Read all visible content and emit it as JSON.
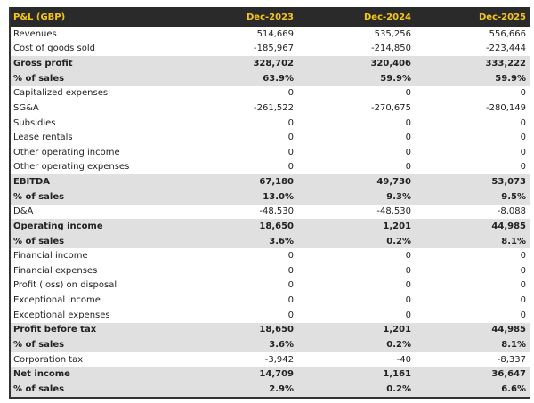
{
  "header": {
    "title": "P&L (GBP)",
    "columns": [
      "Dec-2023",
      "Dec-2024",
      "Dec-2025"
    ]
  },
  "colors": {
    "header_bg": "#2a2a2a",
    "header_text": "#f5c518",
    "highlight_bg": "#e0e0e0"
  },
  "rows": [
    {
      "label": "Revenues",
      "values": [
        "514,669",
        "535,256",
        "556,666"
      ],
      "highlight": false
    },
    {
      "label": "Cost of goods sold",
      "values": [
        "-185,967",
        "-214,850",
        "-223,444"
      ],
      "highlight": false
    },
    {
      "label": "Gross profit",
      "values": [
        "328,702",
        "320,406",
        "333,222"
      ],
      "highlight": true
    },
    {
      "label": "% of sales",
      "values": [
        "63.9%",
        "59.9%",
        "59.9%"
      ],
      "highlight": true
    },
    {
      "label": "Capitalized expenses",
      "values": [
        "0",
        "0",
        "0"
      ],
      "highlight": false
    },
    {
      "label": "SG&A",
      "values": [
        "-261,522",
        "-270,675",
        "-280,149"
      ],
      "highlight": false
    },
    {
      "label": "Subsidies",
      "values": [
        "0",
        "0",
        "0"
      ],
      "highlight": false
    },
    {
      "label": "Lease rentals",
      "values": [
        "0",
        "0",
        "0"
      ],
      "highlight": false
    },
    {
      "label": "Other operating income",
      "values": [
        "0",
        "0",
        "0"
      ],
      "highlight": false
    },
    {
      "label": "Other operating expenses",
      "values": [
        "0",
        "0",
        "0"
      ],
      "highlight": false
    },
    {
      "label": "EBITDA",
      "values": [
        "67,180",
        "49,730",
        "53,073"
      ],
      "highlight": true
    },
    {
      "label": "% of sales",
      "values": [
        "13.0%",
        "9.3%",
        "9.5%"
      ],
      "highlight": true
    },
    {
      "label": "D&A",
      "values": [
        "-48,530",
        "-48,530",
        "-8,088"
      ],
      "highlight": false
    },
    {
      "label": "Operating income",
      "values": [
        "18,650",
        "1,201",
        "44,985"
      ],
      "highlight": true
    },
    {
      "label": "% of sales",
      "values": [
        "3.6%",
        "0.2%",
        "8.1%"
      ],
      "highlight": true
    },
    {
      "label": "Financial income",
      "values": [
        "0",
        "0",
        "0"
      ],
      "highlight": false
    },
    {
      "label": "Financial expenses",
      "values": [
        "0",
        "0",
        "0"
      ],
      "highlight": false
    },
    {
      "label": "Profit (loss) on disposal",
      "values": [
        "0",
        "0",
        "0"
      ],
      "highlight": false
    },
    {
      "label": "Exceptional income",
      "values": [
        "0",
        "0",
        "0"
      ],
      "highlight": false
    },
    {
      "label": "Exceptional expenses",
      "values": [
        "0",
        "0",
        "0"
      ],
      "highlight": false
    },
    {
      "label": "Profit before tax",
      "values": [
        "18,650",
        "1,201",
        "44,985"
      ],
      "highlight": true
    },
    {
      "label": "% of sales",
      "values": [
        "3.6%",
        "0.2%",
        "8.1%"
      ],
      "highlight": true
    },
    {
      "label": "Corporation tax",
      "values": [
        "-3,942",
        "-40",
        "-8,337"
      ],
      "highlight": false
    },
    {
      "label": "Net income",
      "values": [
        "14,709",
        "1,161",
        "36,647"
      ],
      "highlight": true
    },
    {
      "label": "% of sales",
      "values": [
        "2.9%",
        "0.2%",
        "6.6%"
      ],
      "highlight": true
    }
  ]
}
